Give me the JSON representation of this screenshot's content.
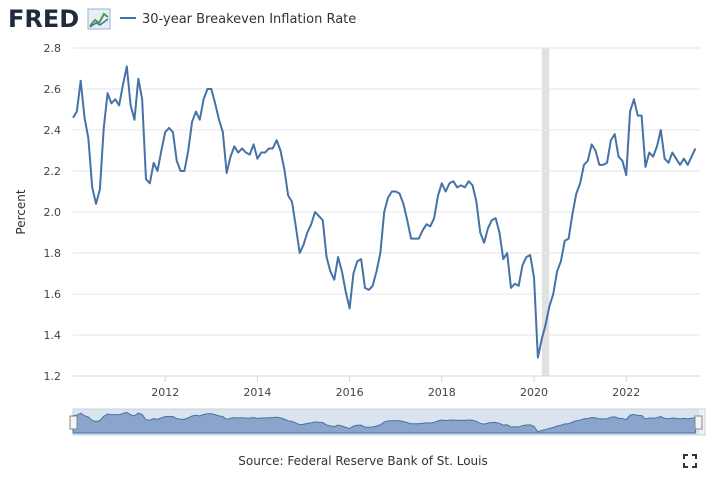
{
  "chart_data": {
    "type": "line",
    "logo": "FRED",
    "y_label": "Percent",
    "source": "Source: Federal Reserve Bank of St. Louis",
    "grid": true,
    "xlim": [
      2010,
      2023.6
    ],
    "xticks": [
      2012,
      2014,
      2016,
      2018,
      2020,
      2022
    ],
    "ylim": [
      1.2,
      2.8
    ],
    "yticks": [
      1.2,
      1.4,
      1.6,
      1.8,
      {
        "value": 2,
        "label": "2.0"
      },
      2.2,
      2.4,
      2.6,
      2.8
    ],
    "recession": [
      2020.17,
      2020.33
    ],
    "x": [
      2010,
      2010.083,
      2010.167,
      2010.25,
      2010.333,
      2010.417,
      2010.5,
      2010.583,
      2010.667,
      2010.75,
      2010.833,
      2010.917,
      2011,
      2011.083,
      2011.167,
      2011.25,
      2011.333,
      2011.417,
      2011.5,
      2011.583,
      2011.667,
      2011.75,
      2011.833,
      2011.917,
      2012,
      2012.083,
      2012.167,
      2012.25,
      2012.333,
      2012.417,
      2012.5,
      2012.583,
      2012.667,
      2012.75,
      2012.833,
      2012.917,
      2013,
      2013.083,
      2013.167,
      2013.25,
      2013.333,
      2013.417,
      2013.5,
      2013.583,
      2013.667,
      2013.75,
      2013.833,
      2013.917,
      2014,
      2014.083,
      2014.167,
      2014.25,
      2014.333,
      2014.417,
      2014.5,
      2014.583,
      2014.667,
      2014.75,
      2014.833,
      2014.917,
      2015,
      2015.083,
      2015.167,
      2015.25,
      2015.333,
      2015.417,
      2015.5,
      2015.583,
      2015.667,
      2015.75,
      2015.833,
      2015.917,
      2016,
      2016.083,
      2016.167,
      2016.25,
      2016.333,
      2016.417,
      2016.5,
      2016.583,
      2016.667,
      2016.75,
      2016.833,
      2016.917,
      2017,
      2017.083,
      2017.167,
      2017.25,
      2017.333,
      2017.417,
      2017.5,
      2017.583,
      2017.667,
      2017.75,
      2017.833,
      2017.917,
      2018,
      2018.083,
      2018.167,
      2018.25,
      2018.333,
      2018.417,
      2018.5,
      2018.583,
      2018.667,
      2018.75,
      2018.833,
      2018.917,
      2019,
      2019.083,
      2019.167,
      2019.25,
      2019.333,
      2019.417,
      2019.5,
      2019.583,
      2019.667,
      2019.75,
      2019.833,
      2019.917,
      2020,
      2020.083,
      2020.167,
      2020.25,
      2020.333,
      2020.417,
      2020.5,
      2020.583,
      2020.667,
      2020.75,
      2020.833,
      2020.917,
      2021,
      2021.083,
      2021.167,
      2021.25,
      2021.333,
      2021.417,
      2021.5,
      2021.583,
      2021.667,
      2021.75,
      2021.833,
      2021.917,
      2022,
      2022.083,
      2022.167,
      2022.25,
      2022.333,
      2022.417,
      2022.5,
      2022.583,
      2022.667,
      2022.75,
      2022.833,
      2022.917,
      2023,
      2023.083,
      2023.167,
      2023.25,
      2023.333,
      2023.417,
      2023.5
    ],
    "series": [
      {
        "name": "30-year Breakeven Inflation Rate",
        "color": "#4572a7",
        "values": [
          2.46,
          2.49,
          2.64,
          2.46,
          2.36,
          2.12,
          2.04,
          2.11,
          2.41,
          2.58,
          2.53,
          2.55,
          2.52,
          2.62,
          2.71,
          2.52,
          2.45,
          2.65,
          2.55,
          2.16,
          2.14,
          2.24,
          2.2,
          2.3,
          2.39,
          2.41,
          2.39,
          2.25,
          2.2,
          2.2,
          2.3,
          2.44,
          2.49,
          2.45,
          2.55,
          2.6,
          2.6,
          2.53,
          2.45,
          2.39,
          2.19,
          2.27,
          2.32,
          2.29,
          2.31,
          2.29,
          2.28,
          2.33,
          2.26,
          2.29,
          2.29,
          2.31,
          2.31,
          2.35,
          2.3,
          2.21,
          2.08,
          2.05,
          1.93,
          1.8,
          1.84,
          1.9,
          1.94,
          2.0,
          1.98,
          1.96,
          1.78,
          1.71,
          1.67,
          1.78,
          1.71,
          1.61,
          1.53,
          1.7,
          1.76,
          1.77,
          1.63,
          1.62,
          1.64,
          1.71,
          1.8,
          2.0,
          2.07,
          2.1,
          2.1,
          2.09,
          2.04,
          1.96,
          1.87,
          1.87,
          1.87,
          1.91,
          1.94,
          1.93,
          1.97,
          2.08,
          2.14,
          2.1,
          2.14,
          2.15,
          2.12,
          2.13,
          2.12,
          2.15,
          2.13,
          2.05,
          1.9,
          1.85,
          1.92,
          1.96,
          1.97,
          1.9,
          1.77,
          1.8,
          1.63,
          1.65,
          1.64,
          1.74,
          1.78,
          1.79,
          1.68,
          1.29,
          1.38,
          1.45,
          1.54,
          1.6,
          1.71,
          1.76,
          1.86,
          1.87,
          1.99,
          2.09,
          2.14,
          2.23,
          2.25,
          2.33,
          2.3,
          2.23,
          2.23,
          2.24,
          2.35,
          2.38,
          2.27,
          2.25,
          2.18,
          2.49,
          2.55,
          2.47,
          2.47,
          2.22,
          2.29,
          2.27,
          2.32,
          2.4,
          2.26,
          2.24,
          2.29,
          2.26,
          2.23,
          2.26,
          2.23,
          2.27,
          2.31
        ]
      }
    ]
  }
}
